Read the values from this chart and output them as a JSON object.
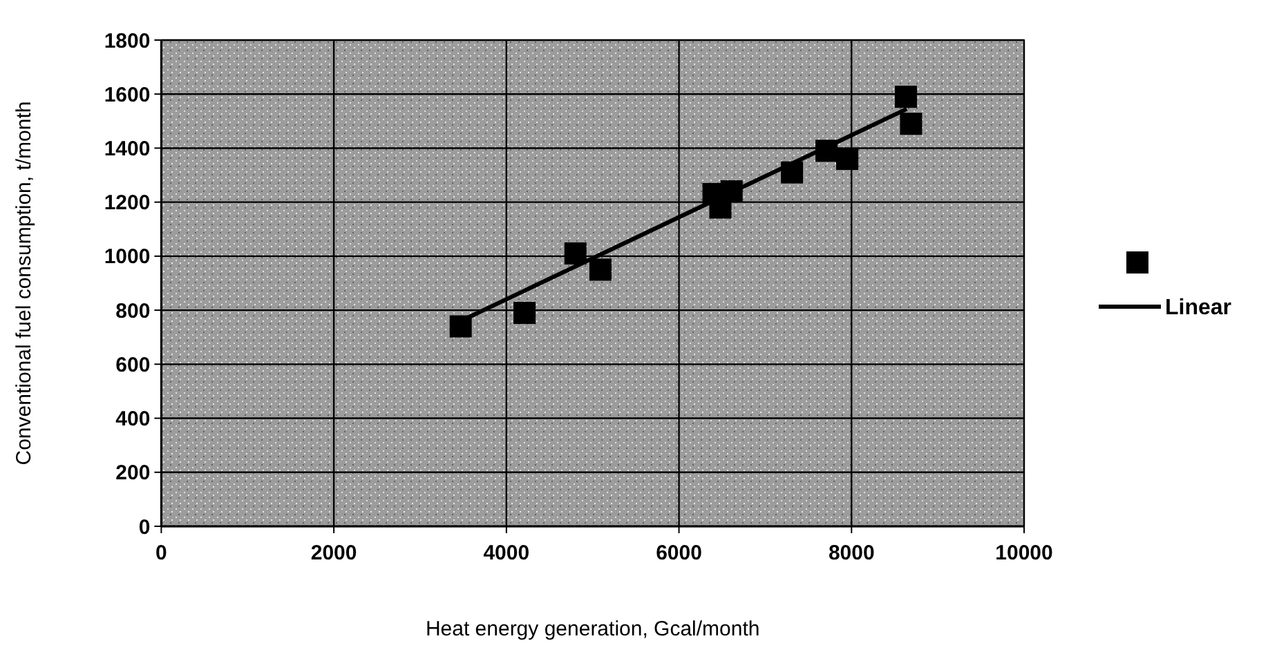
{
  "chart_data": {
    "type": "scatter",
    "xlabel": "Heat energy generation, Gcal/month",
    "ylabel": "Conventional fuel consumption, t/month",
    "xlim": [
      0,
      10000
    ],
    "xticks": [
      0,
      2000,
      4000,
      6000,
      8000,
      10000
    ],
    "ylim": [
      0,
      1800
    ],
    "yticks": [
      0,
      200,
      400,
      600,
      800,
      1000,
      1200,
      1400,
      1600,
      1800
    ],
    "grid": true,
    "legend": "right",
    "series": [
      {
        "marker": "square",
        "color": "#000000",
        "x": [
          3470,
          4210,
          4800,
          5090,
          6400,
          6480,
          6610,
          7310,
          7710,
          7950,
          8630,
          8690
        ],
        "values": [
          740,
          790,
          1010,
          950,
          1230,
          1180,
          1240,
          1310,
          1390,
          1360,
          1590,
          1490
        ]
      },
      {
        "type": "line",
        "name": "Linear",
        "color": "#000000",
        "x": [
          3470,
          8640
        ],
        "values": [
          760,
          1545
        ],
        "line_style": "solid",
        "marker": "none"
      }
    ]
  }
}
